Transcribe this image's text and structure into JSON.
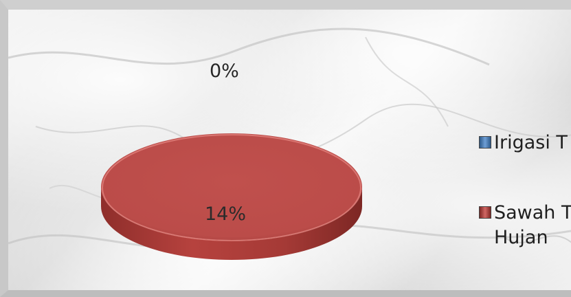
{
  "chart_data": {
    "type": "pie",
    "title": "",
    "series": [
      {
        "categories": [
          "Irigasi T",
          "Sawah T Hujan"
        ],
        "values": [
          0,
          14
        ],
        "labels": [
          "0%",
          "14%"
        ],
        "colors": [
          "#4f81bd",
          "#c0504d"
        ]
      }
    ],
    "legend_position": "right",
    "style": "3d"
  },
  "legend": {
    "items": [
      {
        "label": "Irigasi T",
        "color": "#4f81bd"
      },
      {
        "label": "Sawah T\nHujan",
        "color": "#c0504d"
      }
    ]
  },
  "data_labels": {
    "zero": "0%",
    "main": "14%"
  }
}
